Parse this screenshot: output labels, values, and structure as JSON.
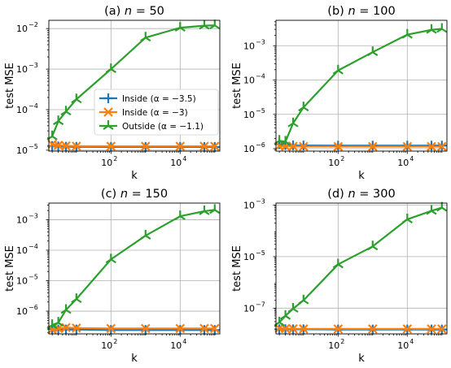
{
  "chart_data": [
    {
      "type": "line",
      "title": "(a) n = 50",
      "title_prefix": "(a)",
      "title_var": "n",
      "title_value": "= 50",
      "xlabel": "k",
      "ylabel": "test MSE",
      "x_scale": "log",
      "y_scale": "log",
      "xlim": [
        1.6,
        140000
      ],
      "ylim": [
        9.5e-06,
        0.016
      ],
      "x_ticks": [
        100,
        10000
      ],
      "x_tick_labels": [
        {
          "base": "10",
          "exp": "2"
        },
        {
          "base": "10",
          "exp": "4"
        }
      ],
      "y_ticks": [
        1e-05,
        0.0001,
        0.001,
        0.01
      ],
      "y_tick_labels": [
        {
          "base": "10",
          "exp": "−5"
        },
        {
          "base": "10",
          "exp": "−4"
        },
        {
          "base": "10",
          "exp": "−3"
        },
        {
          "base": "10",
          "exp": "−2"
        }
      ],
      "grid": true,
      "legend_position": "center-right",
      "series": [
        {
          "name": "Inside (α = −3.5)",
          "color": "#1f77b4",
          "marker": "plus",
          "x": [
            2,
            3,
            5,
            10,
            100,
            1000,
            10000,
            50000,
            100000
          ],
          "y": [
            1.27e-05,
            1.24e-05,
            1.22e-05,
            1.21e-05,
            1.2e-05,
            1.2e-05,
            1.2e-05,
            1.2e-05,
            1.2e-05
          ]
        },
        {
          "name": "Inside (α = −3)",
          "color": "#ff7f0e",
          "marker": "x",
          "x": [
            2,
            3,
            5,
            10,
            100,
            1000,
            10000,
            50000,
            100000
          ],
          "y": [
            1.4e-05,
            1.32e-05,
            1.28e-05,
            1.26e-05,
            1.25e-05,
            1.25e-05,
            1.25e-05,
            1.25e-05,
            1.25e-05
          ]
        },
        {
          "name": "Outside (α = −1.1)",
          "color": "#2ca02c",
          "marker": "tri",
          "x": [
            2,
            3,
            5,
            10,
            100,
            1000,
            10000,
            50000,
            100000
          ],
          "y": [
            2.2e-05,
            5.2e-05,
            9e-05,
            0.00018,
            0.001,
            0.006,
            0.0105,
            0.0118,
            0.012
          ]
        }
      ]
    },
    {
      "type": "line",
      "title": "(b) n = 100",
      "title_prefix": "(b)",
      "title_var": "n",
      "title_value": "= 100",
      "xlabel": "k",
      "ylabel": "test MSE",
      "x_scale": "log",
      "y_scale": "log",
      "xlim": [
        1.6,
        140000
      ],
      "ylim": [
        8.5e-07,
        0.0055
      ],
      "x_ticks": [
        100,
        10000
      ],
      "x_tick_labels": [
        {
          "base": "10",
          "exp": "2"
        },
        {
          "base": "10",
          "exp": "4"
        }
      ],
      "y_ticks": [
        1e-06,
        1e-05,
        0.0001,
        0.001
      ],
      "y_tick_labels": [
        {
          "base": "10",
          "exp": "−6"
        },
        {
          "base": "10",
          "exp": "−5"
        },
        {
          "base": "10",
          "exp": "−4"
        },
        {
          "base": "10",
          "exp": "−3"
        }
      ],
      "grid": true,
      "series": [
        {
          "name": "Inside (α = −3.5)",
          "color": "#1f77b4",
          "marker": "plus",
          "x": [
            2,
            3,
            5,
            10,
            100,
            1000,
            10000,
            50000,
            100000
          ],
          "y": [
            1.35e-06,
            1.28e-06,
            1.25e-06,
            1.24e-06,
            1.23e-06,
            1.23e-06,
            1.23e-06,
            1.23e-06,
            1.23e-06
          ]
        },
        {
          "name": "Inside (α = −3)",
          "color": "#ff7f0e",
          "marker": "x",
          "x": [
            2,
            3,
            5,
            10,
            100,
            1000,
            10000,
            50000,
            100000
          ],
          "y": [
            1.2e-06,
            1.18e-06,
            1.17e-06,
            1.16e-06,
            1.15e-06,
            1.15e-06,
            1.15e-06,
            1.15e-06,
            1.15e-06
          ]
        },
        {
          "name": "Outside (α = −1.1)",
          "color": "#2ca02c",
          "marker": "tri",
          "x": [
            2,
            3,
            5,
            10,
            100,
            1000,
            10000,
            50000,
            100000
          ],
          "y": [
            1.7e-06,
            1.6e-06,
            5.5e-06,
            1.6e-05,
            0.00019,
            0.00065,
            0.0021,
            0.0029,
            0.0031
          ]
        }
      ]
    },
    {
      "type": "line",
      "title": "(c) n = 150",
      "title_prefix": "(c)",
      "title_var": "n",
      "title_value": "= 150",
      "xlabel": "k",
      "ylabel": "test MSE",
      "x_scale": "log",
      "y_scale": "log",
      "xlim": [
        1.6,
        140000
      ],
      "ylim": [
        1.8e-07,
        0.0035
      ],
      "x_ticks": [
        100,
        10000
      ],
      "x_tick_labels": [
        {
          "base": "10",
          "exp": "2"
        },
        {
          "base": "10",
          "exp": "4"
        }
      ],
      "y_ticks": [
        1e-06,
        1e-05,
        0.0001,
        0.001
      ],
      "y_tick_labels": [
        {
          "base": "10",
          "exp": "−6"
        },
        {
          "base": "10",
          "exp": "−5"
        },
        {
          "base": "10",
          "exp": "−4"
        },
        {
          "base": "10",
          "exp": "−3"
        }
      ],
      "grid": true,
      "series": [
        {
          "name": "Inside (α = −3.5)",
          "color": "#1f77b4",
          "marker": "plus",
          "x": [
            2,
            3,
            5,
            10,
            100,
            1000,
            10000,
            50000,
            100000
          ],
          "y": [
            2.6e-07,
            2.5e-07,
            2.5e-07,
            2.5e-07,
            2.4e-07,
            2.4e-07,
            2.4e-07,
            2.4e-07,
            2.4e-07
          ]
        },
        {
          "name": "Inside (α = −3)",
          "color": "#ff7f0e",
          "marker": "x",
          "x": [
            2,
            3,
            5,
            10,
            100,
            1000,
            10000,
            50000,
            100000
          ],
          "y": [
            2.5e-07,
            2.7e-07,
            2.9e-07,
            2.8e-07,
            2.7e-07,
            2.7e-07,
            2.7e-07,
            2.7e-07,
            2.7e-07
          ]
        },
        {
          "name": "Outside (α = −1.1)",
          "color": "#2ca02c",
          "marker": "tri",
          "x": [
            2,
            3,
            5,
            10,
            100,
            1000,
            10000,
            50000,
            100000
          ],
          "y": [
            3.5e-07,
            4.2e-07,
            1.1e-06,
            2.5e-06,
            5e-05,
            0.0003,
            0.0013,
            0.0019,
            0.0021
          ]
        }
      ]
    },
    {
      "type": "line",
      "title": "(d) n = 300",
      "title_prefix": "(d)",
      "title_var": "n",
      "title_value": "= 300",
      "xlabel": "k",
      "ylabel": "test MSE",
      "x_scale": "log",
      "y_scale": "log",
      "xlim": [
        1.6,
        140000
      ],
      "ylim": [
        1e-08,
        0.0012
      ],
      "x_ticks": [
        100,
        10000
      ],
      "x_tick_labels": [
        {
          "base": "10",
          "exp": "2"
        },
        {
          "base": "10",
          "exp": "4"
        }
      ],
      "y_ticks": [
        1e-07,
        1e-05,
        0.001
      ],
      "y_tick_labels": [
        {
          "base": "10",
          "exp": "−7"
        },
        {
          "base": "10",
          "exp": "−5"
        },
        {
          "base": "10",
          "exp": "−3"
        }
      ],
      "grid": true,
      "series": [
        {
          "name": "Inside (α = −3.5)",
          "color": "#1f77b4",
          "marker": "plus",
          "x": [
            2,
            3,
            5,
            10,
            100,
            1000,
            10000,
            50000,
            100000
          ],
          "y": [
            1.5e-08,
            1.52e-08,
            1.5e-08,
            1.5e-08,
            1.48e-08,
            1.48e-08,
            1.48e-08,
            1.48e-08,
            1.48e-08
          ]
        },
        {
          "name": "Inside (α = −3)",
          "color": "#ff7f0e",
          "marker": "x",
          "x": [
            2,
            3,
            5,
            10,
            100,
            1000,
            10000,
            50000,
            100000
          ],
          "y": [
            1.65e-08,
            1.6e-08,
            1.58e-08,
            1.57e-08,
            1.56e-08,
            1.56e-08,
            1.56e-08,
            1.56e-08,
            1.56e-08
          ]
        },
        {
          "name": "Outside (α = −1.1)",
          "color": "#2ca02c",
          "marker": "tri",
          "x": [
            2,
            3,
            5,
            10,
            100,
            1000,
            10000,
            50000,
            100000
          ],
          "y": [
            2.8e-08,
            5e-08,
            9.5e-08,
            2e-07,
            5e-06,
            2.5e-05,
            0.00028,
            0.0006,
            0.0008
          ]
        }
      ]
    }
  ]
}
